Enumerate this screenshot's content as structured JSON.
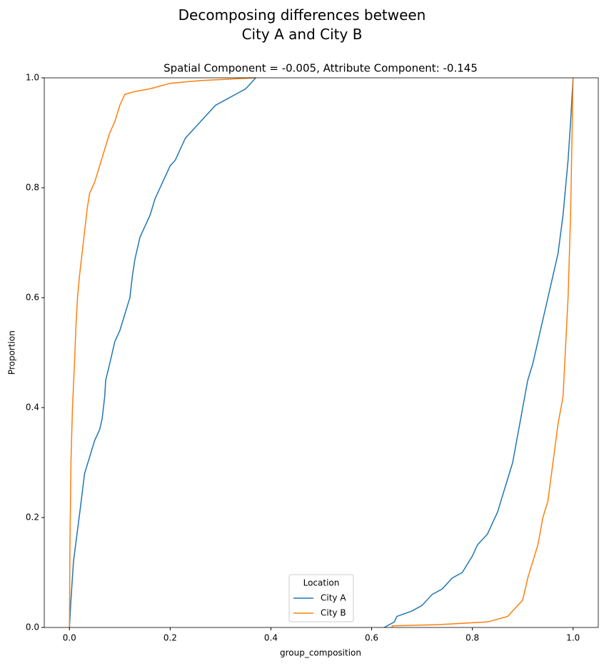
{
  "chart_data": {
    "type": "line",
    "title": "Decomposing differences between\nCity A and City B",
    "subtitle": "Spatial Component = -0.005, Attribute Component: -0.145",
    "x_label": "group_composition",
    "y_label": "Proportion",
    "legend_title": "Location",
    "legend": "lower center",
    "grid": false,
    "xlim": [
      -0.05,
      1.05
    ],
    "ylim": [
      0,
      1
    ],
    "xticks": [
      {
        "value": 0,
        "label": "0.0"
      },
      0.2,
      0.4,
      0.6,
      0.8,
      {
        "value": 1,
        "label": "1.0"
      }
    ],
    "yticks": [
      {
        "value": 0,
        "label": "0.0"
      },
      0.2,
      0.4,
      0.6,
      0.8,
      {
        "value": 1,
        "label": "1.0"
      }
    ],
    "series": [
      {
        "name": "City A",
        "color": "#1f77b4",
        "x": [
          0,
          0.003,
          0.008,
          0.015,
          0.022,
          0.03,
          0.04,
          0.05,
          0.06,
          0.065,
          0.07,
          0.072,
          0.08,
          0.09,
          0.1,
          0.11,
          0.12,
          0.125,
          0.13,
          0.14,
          0.15,
          0.16,
          0.17,
          0.18,
          0.19,
          0.2,
          0.21,
          0.22,
          0.23,
          0.25,
          0.27,
          0.29,
          0.31,
          0.33,
          0.35,
          0.37,
          null,
          0.625,
          0.645,
          0.65,
          0.68,
          0.7,
          0.72,
          0.74,
          0.76,
          0.78,
          0.8,
          0.81,
          0.83,
          0.84,
          0.85,
          0.86,
          0.87,
          0.88,
          0.89,
          0.9,
          0.91,
          0.92,
          0.93,
          0.94,
          0.95,
          0.96,
          0.97,
          0.98,
          0.99,
          0.995,
          1
        ],
        "values": [
          0,
          0.05,
          0.12,
          0.17,
          0.22,
          0.28,
          0.31,
          0.34,
          0.36,
          0.38,
          0.42,
          0.45,
          0.48,
          0.52,
          0.54,
          0.57,
          0.6,
          0.64,
          0.67,
          0.71,
          0.73,
          0.75,
          0.78,
          0.8,
          0.82,
          0.84,
          0.85,
          0.87,
          0.89,
          0.91,
          0.93,
          0.95,
          0.96,
          0.97,
          0.98,
          1,
          null,
          0,
          0.01,
          0.02,
          0.03,
          0.04,
          0.06,
          0.07,
          0.09,
          0.1,
          0.13,
          0.15,
          0.17,
          0.19,
          0.21,
          0.24,
          0.27,
          0.3,
          0.35,
          0.4,
          0.45,
          0.48,
          0.52,
          0.56,
          0.6,
          0.64,
          0.68,
          0.75,
          0.85,
          0.92,
          1
        ]
      },
      {
        "name": "City B",
        "color": "#ff7f0e",
        "x": [
          0,
          0.001,
          0.003,
          0.006,
          0.01,
          0.013,
          0.016,
          0.02,
          0.025,
          0.03,
          0.035,
          0.04,
          0.05,
          0.06,
          0.07,
          0.08,
          0.09,
          0.1,
          0.11,
          0.13,
          0.16,
          0.2,
          0.26,
          0.37,
          null,
          0.64,
          0.641,
          0.73,
          0.83,
          0.87,
          0.88,
          0.9,
          0.91,
          0.93,
          0.94,
          0.95,
          0.96,
          0.97,
          0.98,
          0.99,
          0.995,
          1
        ],
        "values": [
          0,
          0.15,
          0.3,
          0.4,
          0.48,
          0.55,
          0.6,
          0.64,
          0.68,
          0.72,
          0.76,
          0.79,
          0.81,
          0.84,
          0.87,
          0.9,
          0.92,
          0.95,
          0.97,
          0.975,
          0.98,
          0.99,
          0.995,
          1,
          null,
          0,
          0.003,
          0.005,
          0.01,
          0.02,
          0.03,
          0.05,
          0.09,
          0.15,
          0.2,
          0.23,
          0.3,
          0.37,
          0.42,
          0.6,
          0.75,
          1
        ]
      }
    ]
  }
}
